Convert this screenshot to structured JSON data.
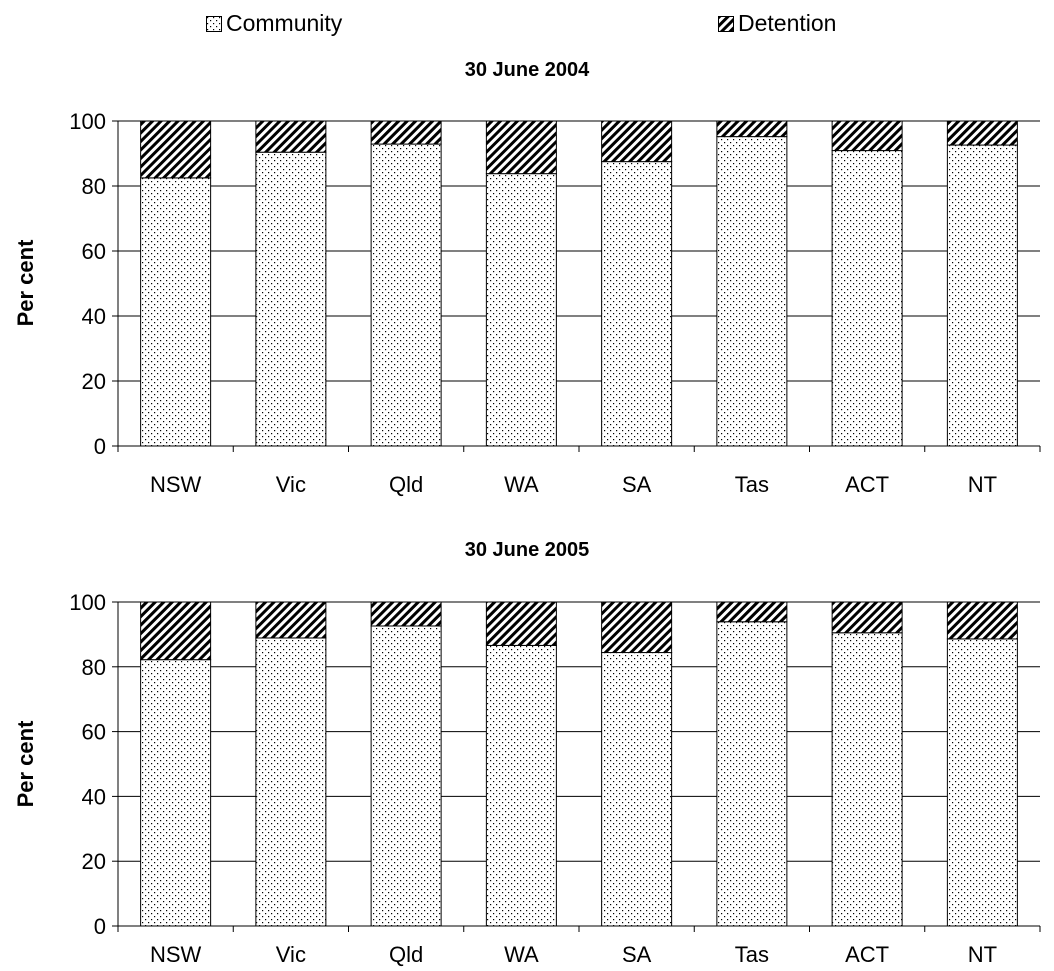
{
  "legend": {
    "community_label": "Community",
    "detention_label": "Detention"
  },
  "chart_data": [
    {
      "type": "bar",
      "stacked": true,
      "title": "30 June 2004",
      "xlabel": "",
      "ylabel": "Per cent",
      "ylim": [
        0,
        100
      ],
      "yticks": [
        0,
        20,
        40,
        60,
        80,
        100
      ],
      "grid": true,
      "legend_position": "top",
      "categories": [
        "NSW",
        "Vic",
        "Qld",
        "WA",
        "SA",
        "Tas",
        "ACT",
        "NT"
      ],
      "series": [
        {
          "name": "Community",
          "values": [
            82.5,
            90.4,
            92.9,
            83.8,
            87.5,
            95.2,
            90.9,
            92.6
          ]
        },
        {
          "name": "Detention",
          "values": [
            17.5,
            9.6,
            7.1,
            16.2,
            12.5,
            4.8,
            9.1,
            7.4
          ]
        }
      ]
    },
    {
      "type": "bar",
      "stacked": true,
      "title": "30 June 2005",
      "xlabel": "",
      "ylabel": "Per cent",
      "ylim": [
        0,
        100
      ],
      "yticks": [
        0,
        20,
        40,
        60,
        80,
        100
      ],
      "grid": true,
      "legend_position": "top",
      "categories": [
        "NSW",
        "Vic",
        "Qld",
        "WA",
        "SA",
        "Tas",
        "ACT",
        "NT"
      ],
      "series": [
        {
          "name": "Community",
          "values": [
            82.2,
            88.9,
            92.6,
            86.6,
            84.4,
            93.9,
            90.5,
            88.6
          ]
        },
        {
          "name": "Detention",
          "values": [
            17.8,
            11.1,
            7.4,
            13.4,
            15.6,
            6.1,
            9.5,
            11.4
          ]
        }
      ]
    }
  ]
}
